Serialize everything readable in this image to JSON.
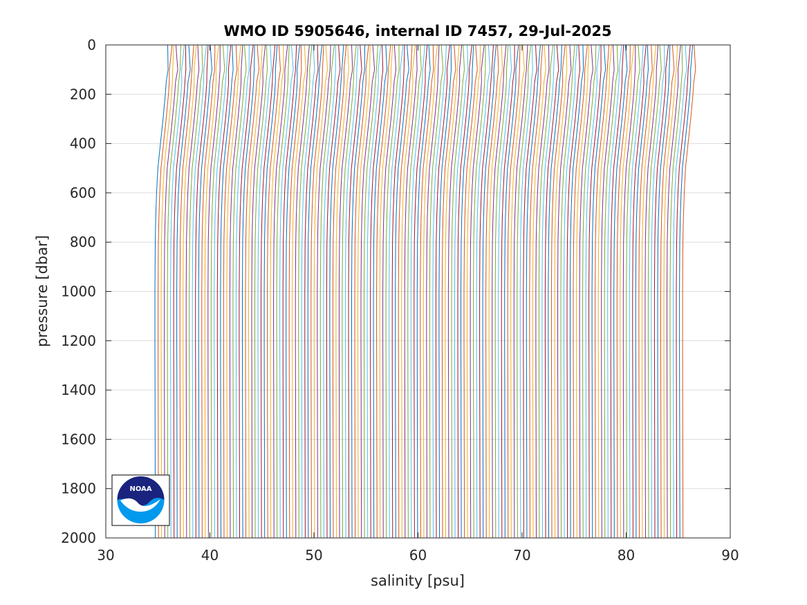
{
  "chart_data": {
    "type": "line",
    "title": "WMO ID 5905646, internal ID 7457, 29-Jul-2025",
    "xlabel": "salinity [psu]",
    "ylabel": "pressure [dbar]",
    "xlim": [
      30,
      90
    ],
    "ylim": [
      0,
      2000
    ],
    "y_reversed": true,
    "grid": "horizontal",
    "x_ticks": [
      30,
      40,
      50,
      60,
      70,
      80,
      90
    ],
    "y_ticks": [
      0,
      200,
      400,
      600,
      800,
      1000,
      1200,
      1400,
      1600,
      1800,
      2000
    ],
    "x_tick_labels": [
      "30",
      "40",
      "50",
      "60",
      "70",
      "80",
      "90"
    ],
    "y_tick_labels": [
      "0",
      "200",
      "400",
      "600",
      "800",
      "1000",
      "1200",
      "1400",
      "1600",
      "1800",
      "2000"
    ],
    "profile_count": 170,
    "profile_offset_psu": 0.3,
    "profile": {
      "pressure": [
        0,
        100,
        150,
        200,
        300,
        400,
        500,
        600,
        700,
        800,
        1000,
        1200,
        1400,
        1600,
        1800,
        2000
      ],
      "salinity": [
        35.95,
        35.9,
        35.8,
        35.72,
        35.5,
        35.25,
        35.0,
        34.88,
        34.8,
        34.75,
        34.72,
        34.72,
        34.73,
        34.74,
        34.75,
        34.76
      ]
    },
    "series_colors": [
      "#0072bd",
      "#d95319",
      "#edb120",
      "#7e2f8e",
      "#77ac30",
      "#4dbeee",
      "#a2142f"
    ]
  },
  "logo": {
    "label": "NOAA",
    "colors": {
      "navy": "#1a237e",
      "blue": "#0099ee"
    }
  }
}
